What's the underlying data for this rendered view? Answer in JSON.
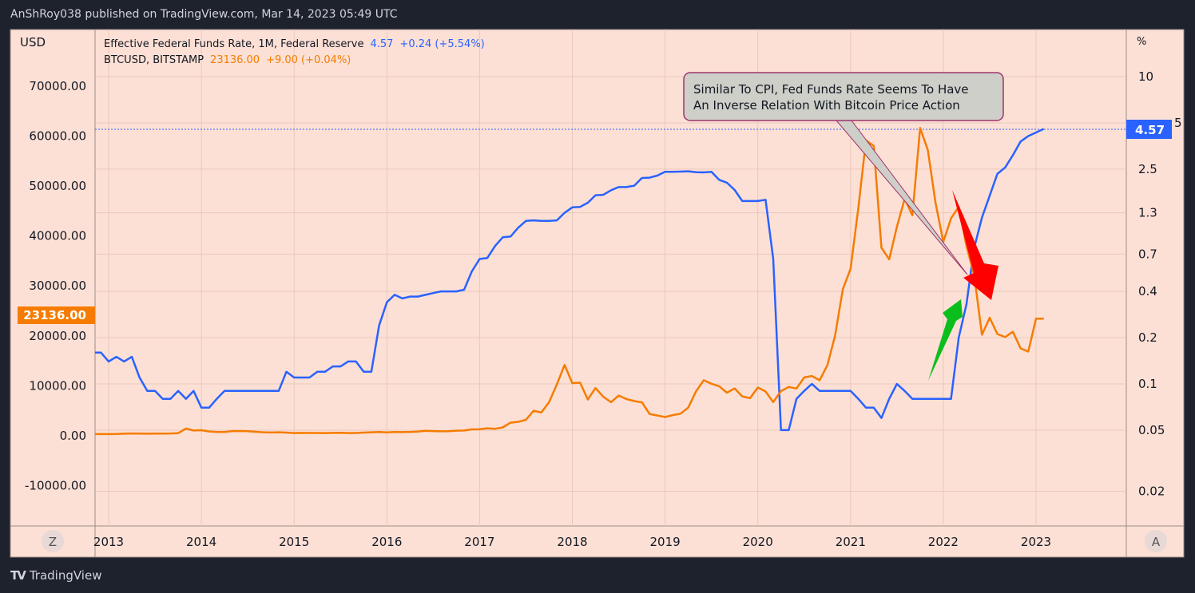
{
  "header": {
    "published": "AnShRoy038 published on TradingView.com, Mar 14, 2023 05:49 UTC"
  },
  "footer": {
    "brand": "TradingView",
    "logo_icon": "tradingview-logo-icon"
  },
  "colors": {
    "background": "#1e222d",
    "pane": "#fde0d5",
    "fed": "#2962ff",
    "btc": "#f57c00",
    "red_arrow": "#ff0000",
    "green_arrow": "#0abf1c",
    "callout_fill": "#cdcfc8",
    "callout_border": "#a0336b"
  },
  "legend": {
    "fed": {
      "name": "Effective Federal Funds Rate, 1M, Federal Reserve",
      "value": "4.57",
      "change": "+0.24 (+5.54%)"
    },
    "btc": {
      "name": "BTCUSD, BITSTAMP",
      "value": "23136.00",
      "change": "+9.00 (+0.04%)"
    }
  },
  "buttons": {
    "z": "Z",
    "a": "A"
  },
  "chart_data": {
    "type": "line",
    "left_axis": {
      "label": "USD",
      "ticks": [
        "70000.00",
        "60000.00",
        "50000.00",
        "40000.00",
        "30000.00",
        "20000.00",
        "10000.00",
        "0.00",
        "-10000.00"
      ],
      "range": [
        -16000,
        77000
      ],
      "scale": "linear"
    },
    "right_axis": {
      "label": "%",
      "ticks": [
        "10",
        "5",
        "2.5",
        "1.3",
        "0.7",
        "0.4",
        "0.2",
        "0.1",
        "0.05",
        "0.02"
      ],
      "scale": "log",
      "range": [
        0.013,
        16
      ]
    },
    "x_axis": {
      "ticks": [
        "2013",
        "2014",
        "2015",
        "2016",
        "2017",
        "2018",
        "2019",
        "2020",
        "2021",
        "2022",
        "2023"
      ]
    },
    "grid": true,
    "last_labels": {
      "btc": "23136.00",
      "fed": "4.57"
    },
    "annotation": {
      "text_line1": "Similar To CPI, Fed Funds Rate Seems To Have",
      "text_line2": "An Inverse Relation With Bitcoin Price Action"
    },
    "x": [
      "2012-11",
      "2012-12",
      "2013-01",
      "2013-02",
      "2013-03",
      "2013-04",
      "2013-05",
      "2013-06",
      "2013-07",
      "2013-08",
      "2013-09",
      "2013-10",
      "2013-11",
      "2013-12",
      "2014-01",
      "2014-02",
      "2014-03",
      "2014-04",
      "2014-05",
      "2014-06",
      "2014-07",
      "2014-08",
      "2014-09",
      "2014-10",
      "2014-11",
      "2014-12",
      "2015-01",
      "2015-02",
      "2015-03",
      "2015-04",
      "2015-05",
      "2015-06",
      "2015-07",
      "2015-08",
      "2015-09",
      "2015-10",
      "2015-11",
      "2015-12",
      "2016-01",
      "2016-02",
      "2016-03",
      "2016-04",
      "2016-05",
      "2016-06",
      "2016-07",
      "2016-08",
      "2016-09",
      "2016-10",
      "2016-11",
      "2016-12",
      "2017-01",
      "2017-02",
      "2017-03",
      "2017-04",
      "2017-05",
      "2017-06",
      "2017-07",
      "2017-08",
      "2017-09",
      "2017-10",
      "2017-11",
      "2017-12",
      "2018-01",
      "2018-02",
      "2018-03",
      "2018-04",
      "2018-05",
      "2018-06",
      "2018-07",
      "2018-08",
      "2018-09",
      "2018-10",
      "2018-11",
      "2018-12",
      "2019-01",
      "2019-02",
      "2019-03",
      "2019-04",
      "2019-05",
      "2019-06",
      "2019-07",
      "2019-08",
      "2019-09",
      "2019-10",
      "2019-11",
      "2019-12",
      "2020-01",
      "2020-02",
      "2020-03",
      "2020-04",
      "2020-05",
      "2020-06",
      "2020-07",
      "2020-08",
      "2020-09",
      "2020-10",
      "2020-11",
      "2020-12",
      "2021-01",
      "2021-02",
      "2021-03",
      "2021-04",
      "2021-05",
      "2021-06",
      "2021-07",
      "2021-08",
      "2021-09",
      "2021-10",
      "2021-11",
      "2021-12",
      "2022-01",
      "2022-02",
      "2022-03",
      "2022-04",
      "2022-05",
      "2022-06",
      "2022-07",
      "2022-08",
      "2022-09",
      "2022-10",
      "2022-11",
      "2022-12",
      "2023-01",
      "2023-02"
    ],
    "series": [
      {
        "name": "Effective Federal Funds Rate, 1M, Federal Reserve",
        "axis": "right",
        "values": [
          0.16,
          0.16,
          0.14,
          0.15,
          0.14,
          0.15,
          0.11,
          0.09,
          0.09,
          0.08,
          0.08,
          0.09,
          0.08,
          0.09,
          0.07,
          0.07,
          0.08,
          0.09,
          0.09,
          0.09,
          0.09,
          0.09,
          0.09,
          0.09,
          0.09,
          0.12,
          0.11,
          0.11,
          0.11,
          0.12,
          0.12,
          0.13,
          0.13,
          0.14,
          0.14,
          0.12,
          0.12,
          0.24,
          0.34,
          0.38,
          0.36,
          0.37,
          0.37,
          0.38,
          0.39,
          0.4,
          0.4,
          0.4,
          0.41,
          0.54,
          0.65,
          0.66,
          0.79,
          0.9,
          0.91,
          1.04,
          1.15,
          1.16,
          1.15,
          1.15,
          1.16,
          1.3,
          1.41,
          1.42,
          1.51,
          1.69,
          1.7,
          1.82,
          1.91,
          1.91,
          1.95,
          2.19,
          2.2,
          2.27,
          2.4,
          2.4,
          2.41,
          2.42,
          2.39,
          2.38,
          2.4,
          2.13,
          2.04,
          1.83,
          1.55,
          1.55,
          1.55,
          1.58,
          0.65,
          0.05,
          0.05,
          0.08,
          0.09,
          0.1,
          0.09,
          0.09,
          0.09,
          0.09,
          0.09,
          0.08,
          0.07,
          0.07,
          0.06,
          0.08,
          0.1,
          0.09,
          0.08,
          0.08,
          0.08,
          0.08,
          0.08,
          0.08,
          0.2,
          0.33,
          0.77,
          1.21,
          1.68,
          2.33,
          2.56,
          3.08,
          3.78,
          4.1,
          4.33,
          4.57
        ]
      },
      {
        "name": "BTCUSD, BITSTAMP",
        "axis": "left",
        "values": [
          12.5,
          13.5,
          20,
          33,
          93,
          139,
          129,
          97,
          106,
          135,
          141,
          204,
          1120,
          732,
          800,
          550,
          450,
          447,
          627,
          640,
          585,
          480,
          387,
          338,
          378,
          320,
          217,
          254,
          244,
          236,
          230,
          263,
          284,
          230,
          236,
          314,
          377,
          430,
          368,
          437,
          416,
          448,
          531,
          673,
          624,
          574,
          608,
          700,
          742,
          963,
          970,
          1190,
          1080,
          1350,
          2300,
          2480,
          2870,
          4700,
          4340,
          6450,
          9950,
          13850,
          10200,
          10300,
          6930,
          9240,
          7500,
          6400,
          7730,
          7030,
          6630,
          6370,
          4040,
          3740,
          3440,
          3820,
          4100,
          5320,
          8570,
          10800,
          10100,
          9600,
          8300,
          9150,
          7550,
          7200,
          9350,
          8540,
          6420,
          8620,
          9450,
          9140,
          11350,
          11650,
          10780,
          13800,
          19700,
          28990,
          33100,
          45200,
          58800,
          57700,
          37300,
          35000,
          41500,
          47100,
          43800,
          61300,
          56900,
          46300,
          38500,
          43200,
          45500,
          37700,
          31800,
          19900,
          23300,
          20050,
          19420,
          20490,
          17170,
          16540,
          23130,
          23136
        ]
      }
    ]
  }
}
